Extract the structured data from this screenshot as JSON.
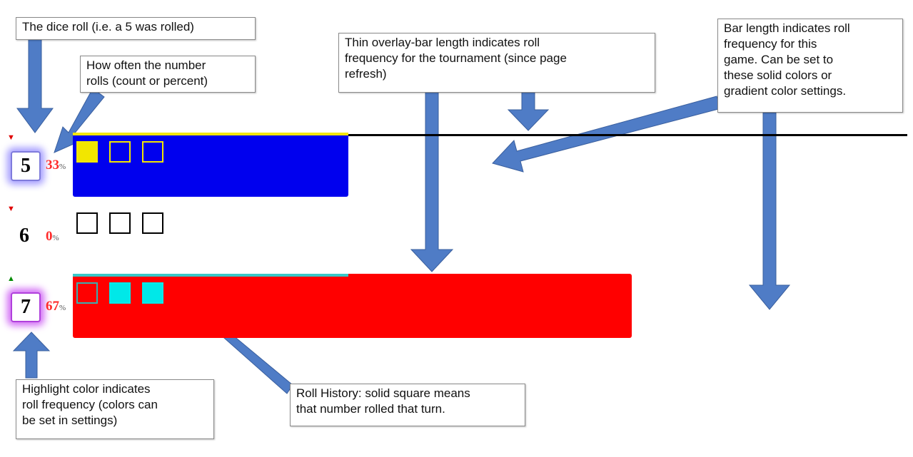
{
  "callouts": {
    "dice_roll": "The dice roll (i.e. a 5 was rolled)",
    "how_often": "How often the number\nrolls (count or percent)",
    "thin_overlay": "Thin overlay-bar length indicates roll\nfrequency for the tournament (since page\nrefresh)",
    "bar_length": "Bar length indicates roll\nfrequency for this\ngame.  Can be set to\nthese solid colors or\ngradient color settings.",
    "highlight": "Highlight color indicates\nroll frequency (colors can\nbe set in settings)",
    "roll_history": "Roll History: solid square means\nthat number rolled that turn."
  },
  "rows": [
    {
      "number": "5",
      "percent": "33",
      "percent_symbol": "%",
      "trend": "down",
      "trend_glyph": "▼",
      "trend_color": "#e00000",
      "game_frequency": 0.33,
      "tournament_frequency": 0.33,
      "bar_color": "#0000ee",
      "overlay_color": "#f2e600",
      "history": [
        true,
        false,
        false
      ],
      "square_color": "#f2e600",
      "highlight": "#a49cff"
    },
    {
      "number": "6",
      "percent": "0",
      "percent_symbol": "%",
      "trend": "down",
      "trend_glyph": "▼",
      "trend_color": "#e00000",
      "game_frequency": 0,
      "tournament_frequency": 0,
      "bar_color": "",
      "overlay_color": "",
      "history": [
        false,
        false,
        false
      ],
      "square_color": "#000000",
      "highlight": ""
    },
    {
      "number": "7",
      "percent": "67",
      "percent_symbol": "%",
      "trend": "up",
      "trend_glyph": "▲",
      "trend_color": "#008a00",
      "game_frequency": 0.67,
      "tournament_frequency": 0.33,
      "bar_color": "#ff0000",
      "overlay_color": "#38c8c8",
      "history": [
        false,
        true,
        true
      ],
      "square_color": "#00e8e8",
      "highlight": "#d26cf5"
    }
  ],
  "colors": {
    "arrow": "#4f7cc6",
    "arrow_edge": "#3a5f9e",
    "callout_border": "#8a8a8a"
  }
}
